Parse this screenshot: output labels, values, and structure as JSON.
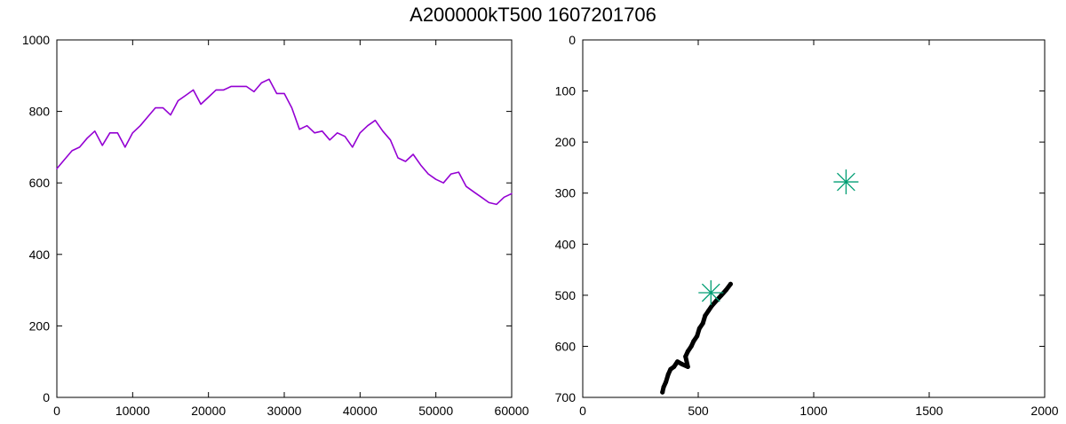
{
  "figure": {
    "title": "A200000kT500  1607201706"
  },
  "chart_data": [
    {
      "type": "line",
      "title": "",
      "xlabel": "",
      "ylabel": "",
      "xlim": [
        0,
        60000
      ],
      "ylim": [
        0,
        1000
      ],
      "y_inverted": false,
      "grid": false,
      "xticks": [
        0,
        10000,
        20000,
        30000,
        40000,
        50000,
        60000
      ],
      "yticks": [
        0,
        200,
        400,
        600,
        800,
        1000
      ],
      "series": [
        {
          "color": "#9400d3",
          "x": [
            0,
            1000,
            2000,
            3000,
            4000,
            5000,
            6000,
            7000,
            8000,
            9000,
            10000,
            11000,
            12000,
            13000,
            14000,
            15000,
            16000,
            17000,
            18000,
            19000,
            20000,
            21000,
            22000,
            23000,
            24000,
            25000,
            26000,
            27000,
            28000,
            29000,
            30000,
            31000,
            32000,
            33000,
            34000,
            35000,
            36000,
            37000,
            38000,
            39000,
            40000,
            41000,
            42000,
            43000,
            44000,
            45000,
            46000,
            47000,
            48000,
            49000,
            50000,
            51000,
            52000,
            53000,
            54000,
            55000,
            56000,
            57000,
            58000,
            59000,
            60000
          ],
          "y": [
            640,
            665,
            690,
            700,
            725,
            745,
            705,
            740,
            740,
            700,
            740,
            760,
            785,
            810,
            810,
            790,
            830,
            845,
            860,
            820,
            840,
            860,
            860,
            870,
            870,
            870,
            855,
            880,
            890,
            850,
            850,
            810,
            750,
            760,
            740,
            745,
            720,
            740,
            730,
            700,
            740,
            760,
            775,
            745,
            720,
            670,
            660,
            680,
            650,
            625,
            610,
            600,
            625,
            630,
            590,
            575,
            560,
            545,
            540,
            560,
            570
          ]
        }
      ]
    },
    {
      "type": "scatter",
      "title": "",
      "xlabel": "",
      "ylabel": "",
      "xlim": [
        0,
        2000
      ],
      "ylim": [
        0,
        700
      ],
      "y_inverted": true,
      "grid": false,
      "xticks": [
        0,
        500,
        1000,
        1500,
        2000
      ],
      "yticks": [
        0,
        100,
        200,
        300,
        400,
        500,
        600,
        700
      ],
      "series": [
        {
          "color": "#000000",
          "marker": "path",
          "x": [
            640,
            620,
            600,
            580,
            560,
            545,
            530,
            520,
            505,
            495,
            480,
            470,
            455,
            445,
            455,
            430,
            410,
            395,
            380,
            370,
            360,
            350,
            345
          ],
          "y": [
            478,
            490,
            500,
            510,
            520,
            530,
            540,
            555,
            565,
            580,
            590,
            600,
            610,
            620,
            640,
            635,
            630,
            640,
            645,
            655,
            670,
            680,
            690
          ]
        },
        {
          "color": "#009e73",
          "marker": "asterisk",
          "x": [
            1140,
            555
          ],
          "y": [
            278,
            495
          ]
        }
      ]
    }
  ]
}
